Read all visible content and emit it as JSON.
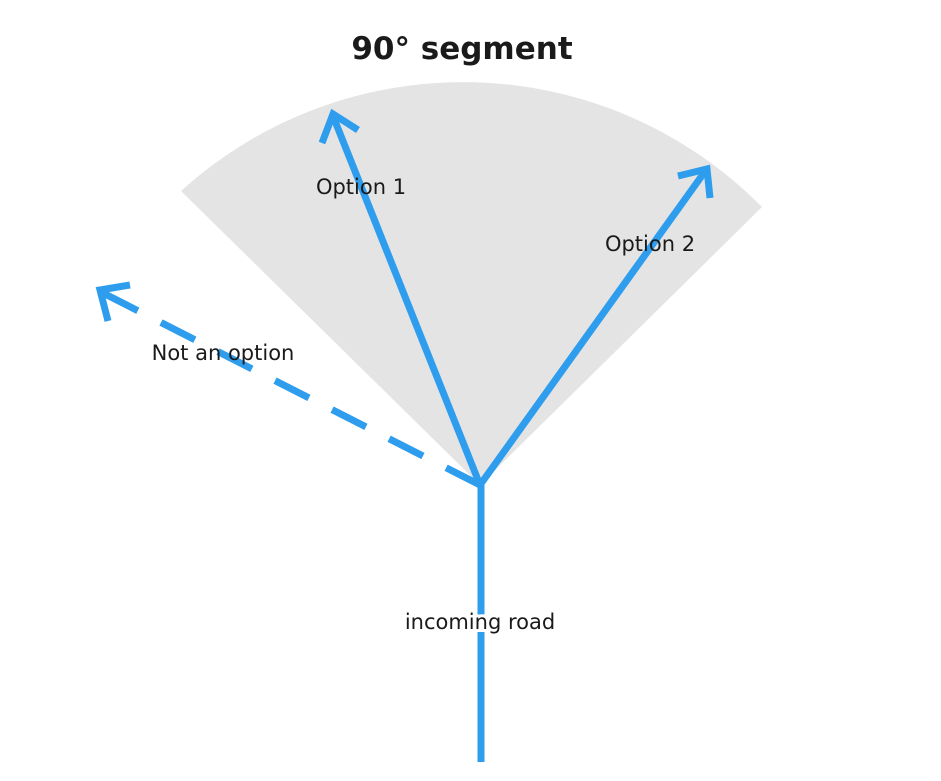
{
  "diagram": {
    "title": "90° segment",
    "labels": {
      "option_1": "Option 1",
      "option_2": "Option 2",
      "not_an_option": "Not an option",
      "incoming_road": "incoming road"
    },
    "colors": {
      "road": "#2f9ded",
      "segment_fill": "#e4e4e4",
      "text": "#1a1a1a",
      "background": "#ffffff"
    }
  }
}
